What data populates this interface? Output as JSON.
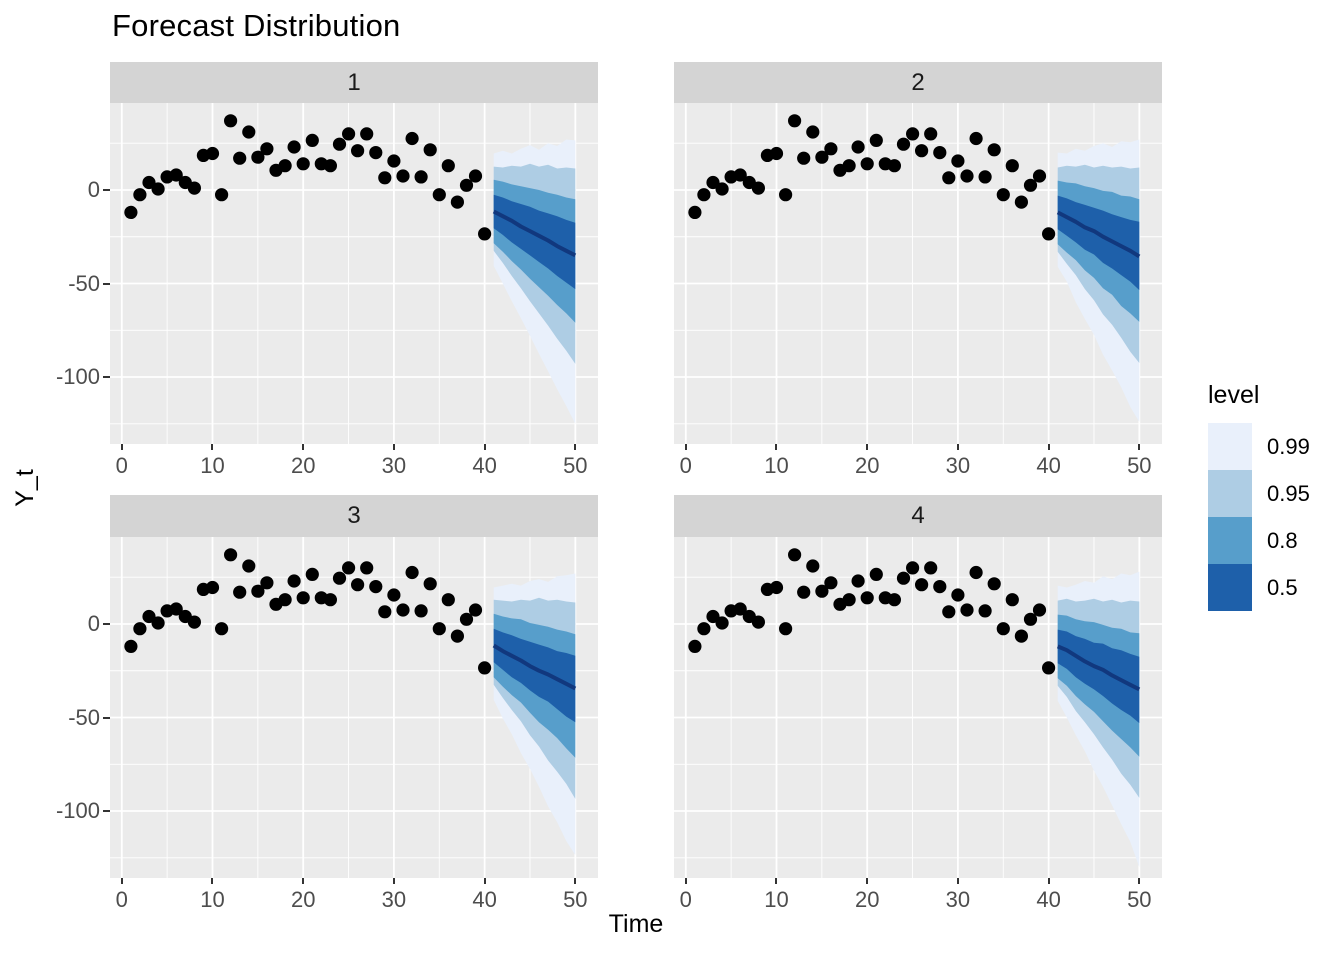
{
  "title": "Forecast Distribution",
  "axis": {
    "x_label": "Time",
    "y_label": "Y_t"
  },
  "legend": {
    "title": "level",
    "entries": [
      {
        "label": "0.99",
        "color": "#E9F0FB"
      },
      {
        "label": "0.95",
        "color": "#AECDE4"
      },
      {
        "label": "0.8",
        "color": "#579ECB"
      },
      {
        "label": "0.5",
        "color": "#1E60AA"
      }
    ]
  },
  "colors": {
    "panel_bg": "#EBEBEB",
    "strip_bg": "#D4D4D4",
    "grid": "#FFFFFF",
    "point": "#000000",
    "median_line": "#11387E",
    "tick_text": "#4D4D4D",
    "tick_mark": "#333333"
  },
  "chart_data": {
    "type": "area",
    "title": "Forecast Distribution",
    "xlabel": "Time",
    "ylabel": "Y_t",
    "x_ticks": [
      0,
      10,
      20,
      30,
      40,
      50
    ],
    "y_ticks": [
      0,
      -50,
      -100
    ],
    "x_minor": [
      5,
      15,
      25,
      35,
      45
    ],
    "y_minor": [
      25,
      -25,
      -75,
      -125
    ],
    "xlim": [
      -1.3,
      52.5
    ],
    "ylim": [
      -135.8,
      46.5
    ],
    "grid": true,
    "legend_position": "right",
    "levels": [
      "0.99",
      "0.95",
      "0.8",
      "0.5"
    ],
    "observed": {
      "t": [
        1,
        2,
        3,
        4,
        5,
        6,
        7,
        8,
        9,
        10,
        11,
        12,
        13,
        14,
        15,
        16,
        17,
        18,
        19,
        20,
        21,
        22,
        23,
        24,
        25,
        26,
        27,
        28,
        29,
        30,
        31,
        32,
        33,
        34,
        35,
        36,
        37,
        38,
        39,
        40
      ],
      "y": [
        -12,
        -2.5,
        4,
        0.5,
        7,
        8,
        4,
        1,
        18.5,
        19.5,
        -2.5,
        37,
        17,
        31,
        17.5,
        22,
        10.5,
        13,
        23,
        14,
        26.5,
        14,
        13,
        24.5,
        30,
        21,
        30,
        20,
        6.5,
        15.5,
        7.5,
        27.5,
        7,
        21.5,
        -2.5,
        13,
        -6.5,
        2.5,
        7.5,
        -23.5
      ]
    },
    "forecast_t": [
      41,
      42,
      43,
      44,
      45,
      46,
      47,
      48,
      49,
      50
    ],
    "facets": [
      {
        "label": "1",
        "median": [
          -11.5,
          -14,
          -16.5,
          -19.5,
          -22,
          -24.5,
          -27,
          -30,
          -32.5,
          -35
        ],
        "bands": [
          {
            "level": "0.99",
            "upper": [
              19.5,
              21,
              19.5,
              22,
              24,
              21.5,
              25,
              23.5,
              27,
              26.5
            ],
            "lower": [
              -40.5,
              -50,
              -59.5,
              -68.5,
              -78,
              -87.5,
              -97,
              -106.5,
              -115.5,
              -125
            ]
          },
          {
            "level": "0.95",
            "upper": [
              12.5,
              12,
              13,
              12.5,
              14,
              12.5,
              13.5,
              11.5,
              12,
              11.5
            ],
            "lower": [
              -32.5,
              -39,
              -46,
              -52.5,
              -59.5,
              -66,
              -72.5,
              -79.5,
              -86,
              -93
            ]
          },
          {
            "level": "0.8",
            "upper": [
              5.5,
              4.5,
              3,
              2,
              1,
              0,
              -1.5,
              -2.5,
              -4,
              -5
            ],
            "lower": [
              -28.5,
              -33,
              -38,
              -42.5,
              -47.5,
              -52,
              -56.5,
              -61.5,
              -66,
              -71
            ]
          },
          {
            "level": "0.5",
            "upper": [
              -2.5,
              -4,
              -6,
              -7.5,
              -9,
              -11,
              -12.5,
              -14,
              -16,
              -17.5
            ],
            "lower": [
              -20.5,
              -24,
              -28,
              -31.5,
              -35,
              -38.5,
              -42,
              -46,
              -49.5,
              -53
            ]
          }
        ]
      },
      {
        "label": "2",
        "median": [
          -12,
          -14.5,
          -17,
          -20,
          -22,
          -25,
          -27.5,
          -30,
          -32.5,
          -35.5
        ],
        "bands": [
          {
            "level": "0.99",
            "upper": [
              20,
              19.5,
              22,
              21,
              23.5,
              25,
              23,
              26,
              25.5,
              27
            ],
            "lower": [
              -41,
              -49,
              -60,
              -69,
              -77.5,
              -88,
              -96.5,
              -105.5,
              -116,
              -124
            ]
          },
          {
            "level": "0.95",
            "upper": [
              12,
              13,
              12.5,
              13.5,
              12,
              13,
              12,
              12.5,
              11.5,
              12
            ],
            "lower": [
              -33,
              -39.5,
              -45.5,
              -53,
              -59,
              -66.5,
              -72,
              -79,
              -86.5,
              -92.5
            ]
          },
          {
            "level": "0.8",
            "upper": [
              5,
              4,
              3.5,
              2,
              1,
              -0.5,
              -1,
              -3,
              -3.5,
              -5
            ],
            "lower": [
              -29,
              -33.5,
              -37.5,
              -43,
              -47,
              -52.5,
              -56,
              -62,
              -66,
              -70.5
            ]
          },
          {
            "level": "0.5",
            "upper": [
              -3,
              -4.5,
              -6.5,
              -8,
              -9.5,
              -11,
              -13,
              -14.5,
              -16,
              -17
            ],
            "lower": [
              -21,
              -24.5,
              -28,
              -32,
              -34.5,
              -39,
              -42,
              -45.5,
              -49,
              -53.5
            ]
          }
        ]
      },
      {
        "label": "3",
        "median": [
          -11.5,
          -14.5,
          -17,
          -19.5,
          -22.5,
          -25,
          -27,
          -29.5,
          -32,
          -34.5
        ],
        "bands": [
          {
            "level": "0.99",
            "upper": [
              19.5,
              20.5,
              21.5,
              20.5,
              23,
              24,
              22.5,
              25.5,
              26,
              27
            ],
            "lower": [
              -40.5,
              -50.5,
              -59,
              -69,
              -77.5,
              -87,
              -97.5,
              -106,
              -116,
              -123.5
            ]
          },
          {
            "level": "0.95",
            "upper": [
              13,
              12.5,
              12,
              13,
              12.5,
              14,
              12.5,
              13,
              12,
              11.5
            ],
            "lower": [
              -32.5,
              -39.5,
              -46,
              -52,
              -59.5,
              -65.5,
              -73,
              -79,
              -85.5,
              -93.5
            ]
          },
          {
            "level": "0.8",
            "upper": [
              5.5,
              4,
              3,
              2.5,
              0.5,
              -0.5,
              -1.5,
              -3,
              -4,
              -5.5
            ],
            "lower": [
              -28.5,
              -33.5,
              -38,
              -42,
              -47.5,
              -52.5,
              -56.5,
              -61,
              -66.5,
              -71.5
            ]
          },
          {
            "level": "0.5",
            "upper": [
              -2.5,
              -4.5,
              -6,
              -8,
              -9.5,
              -11,
              -12.5,
              -14.5,
              -15.5,
              -17
            ],
            "lower": [
              -20.5,
              -24.5,
              -28.5,
              -31.5,
              -35.5,
              -39,
              -41.5,
              -45.5,
              -49.5,
              -52.5
            ]
          }
        ]
      },
      {
        "label": "4",
        "median": [
          -12,
          -14,
          -17,
          -20,
          -22.5,
          -24.5,
          -27.5,
          -30,
          -32.5,
          -35
        ],
        "bands": [
          {
            "level": "0.99",
            "upper": [
              20.5,
              19.5,
              21,
              23,
              22,
              25.5,
              24,
              27,
              26,
              28
            ],
            "lower": [
              -41,
              -50,
              -59.5,
              -68,
              -78.5,
              -87,
              -97,
              -107,
              -116.5,
              -130
            ]
          },
          {
            "level": "0.95",
            "upper": [
              12.5,
              13.5,
              12,
              12.5,
              13.5,
              12,
              13,
              11.5,
              12.5,
              12
            ],
            "lower": [
              -33,
              -39,
              -46.5,
              -52.5,
              -59,
              -66,
              -72.5,
              -80,
              -86,
              -93
            ]
          },
          {
            "level": "0.8",
            "upper": [
              5,
              4.5,
              2.5,
              1.5,
              1,
              -0.5,
              -2,
              -2.5,
              -4.5,
              -5
            ],
            "lower": [
              -29,
              -33,
              -38.5,
              -43,
              -47,
              -52,
              -57,
              -61.5,
              -66,
              -71
            ]
          },
          {
            "level": "0.5",
            "upper": [
              -3,
              -4,
              -6.5,
              -8,
              -10,
              -10.5,
              -13,
              -14,
              -16,
              -17.5
            ],
            "lower": [
              -21,
              -24,
              -28.5,
              -32,
              -35,
              -38.5,
              -42.5,
              -46,
              -49,
              -53
            ]
          }
        ]
      }
    ]
  }
}
